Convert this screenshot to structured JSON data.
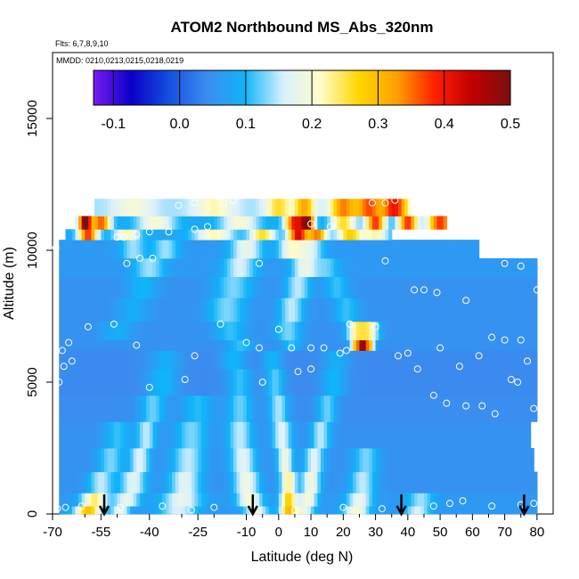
{
  "chart_data": {
    "type": "heatmap",
    "title": "ATOM2 Northbound MS_Abs_320nm",
    "flights_note": "Flts: 6,7,8,9,10",
    "dates_note": "MMDD: 0210,0213,0215,0218,0219",
    "xlabel": "Latitude (deg N)",
    "ylabel": "Altitude (m)",
    "xlim": [
      -70,
      85
    ],
    "ylim": [
      0,
      17500
    ],
    "x_ticks": [
      "-70",
      "-55",
      "-40",
      "-25",
      "-10",
      "0",
      "10",
      "20",
      "30",
      "40",
      "50",
      "60",
      "70",
      "80"
    ],
    "x_tick_values": [
      -70,
      -55,
      -40,
      -25,
      -10,
      0,
      10,
      20,
      30,
      40,
      50,
      60,
      70,
      80
    ],
    "x_minor_ticks": [
      "-60",
      "-50",
      "-30",
      "-20",
      "-5",
      "5",
      "15",
      "25",
      "35",
      "45",
      "55",
      "65",
      "75"
    ],
    "x_minor_tick_values": [
      -60,
      -50,
      -30,
      -20,
      -5,
      5,
      15,
      25,
      35,
      45,
      55,
      65,
      75
    ],
    "y_ticks": [
      "0",
      "5000",
      "10000",
      "15000"
    ],
    "y_tick_values": [
      0,
      5000,
      10000,
      15000
    ],
    "colorbar": {
      "ticks": [
        "-0.1",
        "0.0",
        "0.1",
        "0.2",
        "0.3",
        "0.4",
        "0.5"
      ],
      "tick_values": [
        -0.1,
        0.0,
        0.1,
        0.2,
        0.3,
        0.4,
        0.5
      ],
      "range": [
        -0.13,
        0.5
      ],
      "colors": [
        "#7a1cf0",
        "#0a00c8",
        "#1450e0",
        "#3c8cf0",
        "#10b4f8",
        "#d8f0ff",
        "#fffcc8",
        "#ffd700",
        "#ffa000",
        "#ff2000",
        "#c00000",
        "#7a1010"
      ]
    },
    "arrows_latitude": [
      -54,
      -8,
      38,
      76
    ],
    "bands": [
      {
        "alt": [
          0,
          300
        ],
        "lat": [
          -68,
          80
        ],
        "base": 0.06,
        "bumps": [
          [
            -59,
            0.24,
            4
          ],
          [
            -49,
            0.12,
            3
          ],
          [
            -31,
            0.1,
            6
          ],
          [
            -7,
            0.12,
            4
          ],
          [
            3,
            0.24,
            2.5
          ],
          [
            8,
            0.12,
            3
          ],
          [
            24,
            0.14,
            4
          ],
          [
            43,
            0.1,
            4
          ]
        ]
      },
      {
        "alt": [
          300,
          800
        ],
        "lat": [
          -68,
          80
        ],
        "base": 0.06,
        "bumps": [
          [
            -57,
            0.18,
            4
          ],
          [
            -47,
            0.12,
            4
          ],
          [
            -30,
            0.12,
            6
          ],
          [
            -9,
            0.14,
            4
          ],
          [
            3,
            0.22,
            2.5
          ],
          [
            9,
            0.14,
            3
          ],
          [
            25,
            0.12,
            4
          ],
          [
            44,
            0.08,
            4
          ]
        ]
      },
      {
        "alt": [
          800,
          1600
        ],
        "lat": [
          -68,
          80
        ],
        "base": 0.05,
        "bumps": [
          [
            -55,
            0.1,
            4
          ],
          [
            -45,
            0.12,
            4
          ],
          [
            -29,
            0.12,
            5
          ],
          [
            -10,
            0.14,
            4
          ],
          [
            3,
            0.18,
            2.5
          ],
          [
            10,
            0.14,
            3
          ],
          [
            26,
            0.1,
            4
          ]
        ]
      },
      {
        "alt": [
          1600,
          2500
        ],
        "lat": [
          -68,
          79
        ],
        "base": 0.05,
        "bumps": [
          [
            -52,
            0.08,
            4
          ],
          [
            -43,
            0.12,
            3
          ],
          [
            -28,
            0.1,
            5
          ],
          [
            -11,
            0.12,
            4
          ],
          [
            2,
            0.14,
            2.5
          ],
          [
            11,
            0.12,
            3
          ],
          [
            27,
            0.08,
            4
          ]
        ]
      },
      {
        "alt": [
          2500,
          3500
        ],
        "lat": [
          -68,
          78
        ],
        "base": 0.05,
        "bumps": [
          [
            -50,
            0.06,
            4
          ],
          [
            -41,
            0.1,
            3
          ],
          [
            -27,
            0.08,
            5
          ],
          [
            -12,
            0.1,
            4
          ],
          [
            1,
            0.12,
            3
          ],
          [
            13,
            0.1,
            3
          ]
        ]
      },
      {
        "alt": [
          3500,
          4500
        ],
        "lat": [
          -68,
          80
        ],
        "base": 0.045,
        "bumps": [
          [
            -39,
            0.08,
            4
          ],
          [
            -25,
            0.06,
            5
          ],
          [
            -12,
            0.08,
            4
          ],
          [
            0,
            0.1,
            3
          ],
          [
            15,
            0.08,
            3
          ]
        ]
      },
      {
        "alt": [
          4500,
          5500
        ],
        "lat": [
          -68,
          80
        ],
        "base": 0.04,
        "bumps": [
          [
            -36,
            0.06,
            5
          ],
          [
            -12,
            0.07,
            4
          ],
          [
            -1,
            0.08,
            3
          ],
          [
            17,
            0.06,
            4
          ]
        ]
      },
      {
        "alt": [
          5500,
          6200
        ],
        "lat": [
          -68,
          80
        ],
        "base": 0.04,
        "bumps": [
          [
            -35,
            0.05,
            5
          ],
          [
            -14,
            0.06,
            4
          ],
          [
            -2,
            0.06,
            3
          ],
          [
            18,
            0.05,
            4
          ]
        ]
      },
      {
        "alt": [
          6200,
          6600
        ],
        "lat": [
          -68,
          80
        ],
        "base": 0.05,
        "bumps": [
          [
            24,
            0.25,
            1.6
          ],
          [
            28,
            0.25,
            1.6
          ],
          [
            26,
            0.36,
            1.2
          ],
          [
            -12,
            0.06,
            4
          ],
          [
            4,
            0.06,
            3
          ]
        ]
      },
      {
        "alt": [
          6600,
          7300
        ],
        "lat": [
          -68,
          80
        ],
        "base": 0.05,
        "bumps": [
          [
            -50,
            0.04,
            5
          ],
          [
            -15,
            0.06,
            5
          ],
          [
            3,
            0.08,
            4
          ],
          [
            24,
            0.16,
            3
          ],
          [
            28,
            0.16,
            3
          ]
        ]
      },
      {
        "alt": [
          7300,
          8200
        ],
        "lat": [
          -68,
          80
        ],
        "base": 0.05,
        "bumps": [
          [
            -45,
            0.04,
            5
          ],
          [
            -16,
            0.08,
            6
          ],
          [
            4,
            0.1,
            4
          ],
          [
            21,
            0.06,
            4
          ]
        ]
      },
      {
        "alt": [
          8200,
          9000
        ],
        "lat": [
          -68,
          80
        ],
        "base": 0.05,
        "bumps": [
          [
            -42,
            0.05,
            5
          ],
          [
            -14,
            0.08,
            6
          ],
          [
            6,
            0.1,
            4
          ],
          [
            18,
            0.06,
            4
          ]
        ]
      },
      {
        "alt": [
          9000,
          9700
        ],
        "lat": [
          -68,
          80
        ],
        "base": 0.06,
        "bumps": [
          [
            -40,
            0.08,
            5
          ],
          [
            -12,
            0.1,
            5
          ],
          [
            8,
            0.12,
            4
          ],
          [
            15,
            0.06,
            4
          ]
        ]
      },
      {
        "alt": [
          9700,
          10400
        ],
        "lat": [
          -68,
          62
        ],
        "base": 0.06,
        "bumps": [
          [
            -45,
            0.08,
            4
          ],
          [
            -35,
            0.08,
            4
          ],
          [
            -10,
            0.12,
            5
          ],
          [
            4,
            0.14,
            4
          ],
          [
            10,
            0.1,
            4
          ]
        ]
      },
      {
        "alt": [
          10400,
          10800
        ],
        "lat": [
          -66,
          35
        ],
        "base": 0.08,
        "bumps": [
          [
            -59,
            0.3,
            3
          ],
          [
            -47,
            0.14,
            4
          ],
          [
            -20,
            0.14,
            6
          ],
          [
            -5,
            0.18,
            4
          ],
          [
            6,
            0.34,
            3
          ],
          [
            12,
            0.26,
            3
          ],
          [
            22,
            0.2,
            4
          ],
          [
            30,
            0.14,
            4
          ]
        ]
      },
      {
        "alt": [
          10800,
          11300
        ],
        "lat": [
          -63,
          52
        ],
        "base": 0.08,
        "bumps": [
          [
            -60,
            0.42,
            2
          ],
          [
            -55,
            0.28,
            3
          ],
          [
            -38,
            0.12,
            6
          ],
          [
            -12,
            0.12,
            6
          ],
          [
            5,
            0.32,
            3
          ],
          [
            9,
            0.4,
            2
          ],
          [
            20,
            0.18,
            4
          ],
          [
            30,
            0.3,
            3
          ],
          [
            40,
            0.3,
            3
          ],
          [
            50,
            0.3,
            4
          ]
        ]
      },
      {
        "alt": [
          11300,
          11950
        ],
        "lat": [
          -57,
          41
        ],
        "base": 0.14,
        "bumps": [
          [
            -45,
            0.06,
            6
          ],
          [
            -20,
            0.08,
            6
          ],
          [
            0,
            0.12,
            4
          ],
          [
            8,
            0.18,
            3
          ],
          [
            20,
            0.2,
            4
          ],
          [
            28,
            0.22,
            4
          ],
          [
            36,
            0.26,
            4
          ]
        ]
      }
    ],
    "sample_points": [
      [
        -68.5,
        200
      ],
      [
        -66,
        250
      ],
      [
        -61,
        300
      ],
      [
        -49,
        250
      ],
      [
        -36,
        300
      ],
      [
        -27,
        150
      ],
      [
        -20,
        250
      ],
      [
        -8,
        250
      ],
      [
        5,
        150
      ],
      [
        20,
        250
      ],
      [
        32,
        200
      ],
      [
        48,
        300
      ],
      [
        53,
        400
      ],
      [
        57,
        500
      ],
      [
        66,
        300
      ],
      [
        75,
        350
      ],
      [
        79,
        400
      ],
      [
        -68,
        5000
      ],
      [
        -66.5,
        5600
      ],
      [
        -64,
        5800
      ],
      [
        -40,
        4800
      ],
      [
        -29,
        5100
      ],
      [
        -5,
        5000
      ],
      [
        6,
        5400
      ],
      [
        10,
        5500
      ],
      [
        19,
        6100
      ],
      [
        37,
        6000
      ],
      [
        43,
        5500
      ],
      [
        48,
        4500
      ],
      [
        52,
        4200
      ],
      [
        58,
        4100
      ],
      [
        63,
        4100
      ],
      [
        67,
        3800
      ],
      [
        72,
        5100
      ],
      [
        74,
        5000
      ],
      [
        79,
        4000
      ],
      [
        -67,
        6200
      ],
      [
        -65,
        6500
      ],
      [
        -59,
        7100
      ],
      [
        -51,
        7200
      ],
      [
        -44,
        6400
      ],
      [
        -26,
        6000
      ],
      [
        -18,
        7200
      ],
      [
        -10,
        6500
      ],
      [
        -6,
        6300
      ],
      [
        0,
        7000
      ],
      [
        4,
        6300
      ],
      [
        10,
        6300
      ],
      [
        14,
        6300
      ],
      [
        21,
        6200
      ],
      [
        22,
        7200
      ],
      [
        30,
        7100
      ],
      [
        40,
        6100
      ],
      [
        50,
        6300
      ],
      [
        56,
        5600
      ],
      [
        62,
        6000
      ],
      [
        66,
        6700
      ],
      [
        70,
        6600
      ],
      [
        75,
        6600
      ],
      [
        77,
        5800
      ],
      [
        -47,
        9500
      ],
      [
        -43,
        9700
      ],
      [
        -39,
        9700
      ],
      [
        -6,
        9500
      ],
      [
        33,
        9600
      ],
      [
        42,
        8500
      ],
      [
        45,
        8500
      ],
      [
        49,
        8400
      ],
      [
        58,
        8100
      ],
      [
        70,
        9500
      ],
      [
        75,
        9400
      ],
      [
        80,
        8500
      ],
      [
        -69,
        10100
      ],
      [
        -50,
        10500
      ],
      [
        -48,
        10500
      ],
      [
        -44,
        10600
      ],
      [
        -40,
        10700
      ],
      [
        -34,
        10700
      ],
      [
        -26,
        10800
      ],
      [
        -22,
        10900
      ],
      [
        10,
        11000
      ],
      [
        16,
        10900
      ],
      [
        -66,
        11400
      ],
      [
        -64,
        11900
      ],
      [
        -62,
        11900
      ],
      [
        -31,
        11700
      ],
      [
        -26,
        11800
      ],
      [
        -17,
        11800
      ],
      [
        -14,
        11900
      ],
      [
        29,
        11800
      ],
      [
        33,
        11800
      ],
      [
        36,
        11900
      ]
    ]
  }
}
